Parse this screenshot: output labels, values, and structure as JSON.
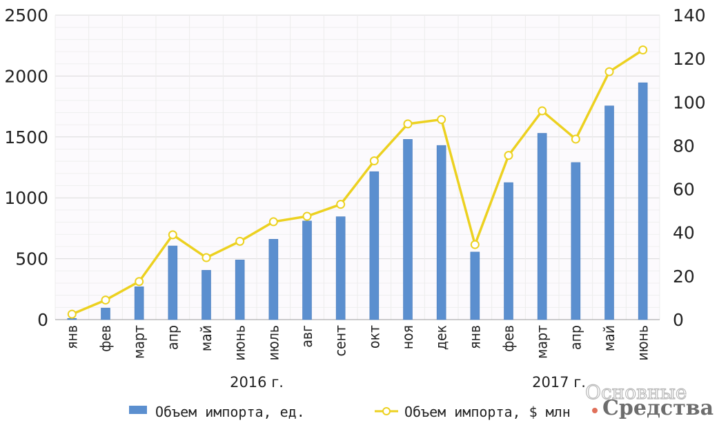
{
  "chart_data": {
    "type": "bar+line",
    "categories": [
      "янв",
      "фев",
      "март",
      "апр",
      "май",
      "июнь",
      "июль",
      "авг",
      "сент",
      "окт",
      "ноя",
      "дек",
      "янв",
      "фев",
      "март",
      "апр",
      "май",
      "июнь"
    ],
    "year_groups": [
      {
        "label": "2016 г.",
        "from": 0,
        "to": 11
      },
      {
        "label": "2017 г.",
        "from": 12,
        "to": 17
      }
    ],
    "series": [
      {
        "name": "Объем импорта, ед.",
        "type": "bar",
        "axis": "left",
        "color": "#5b8fcf",
        "values": [
          10,
          95,
          270,
          605,
          405,
          490,
          660,
          810,
          845,
          1215,
          1480,
          1430,
          555,
          1125,
          1530,
          1290,
          1755,
          1945
        ]
      },
      {
        "name": "Объем импорта, $ млн",
        "type": "line",
        "axis": "right",
        "color": "#ecd120",
        "values": [
          2.5,
          9,
          17.5,
          39,
          28.5,
          36,
          45,
          47.5,
          53,
          73,
          90,
          92,
          34.5,
          75.5,
          96,
          83,
          114,
          124
        ]
      }
    ],
    "y_left": {
      "min": 0,
      "max": 2500,
      "ticks": [
        0,
        500,
        1000,
        1500,
        2000,
        2500
      ]
    },
    "y_right": {
      "min": 0,
      "max": 140,
      "ticks": [
        0,
        20,
        40,
        60,
        80,
        100,
        120,
        140
      ]
    },
    "grid": true,
    "legend_position": "bottom"
  },
  "watermark": {
    "line1": "Основные",
    "line2": "Средства",
    "dot_color": "#e0705a"
  }
}
